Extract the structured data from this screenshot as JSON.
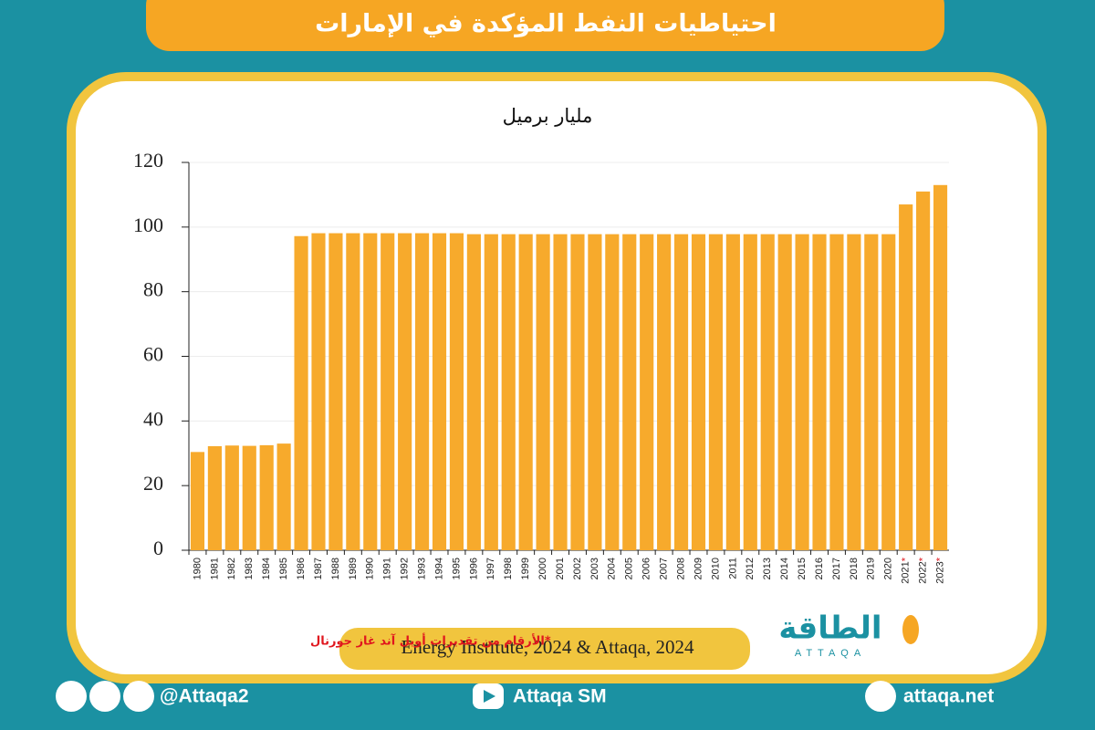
{
  "chart_data": {
    "type": "bar",
    "title": "احتياطيات النفط المؤكدة في الإمارات",
    "subtitle": "مليار برميل",
    "categories": [
      "1980",
      "1981",
      "1982",
      "1983",
      "1984",
      "1985",
      "1986",
      "1987",
      "1988",
      "1989",
      "1990",
      "1991",
      "1992",
      "1993",
      "1994",
      "1995",
      "1996",
      "1997",
      "1998",
      "1999",
      "2000",
      "2001",
      "2002",
      "2003",
      "2004",
      "2005",
      "2006",
      "2007",
      "2008",
      "2009",
      "2010",
      "2011",
      "2012",
      "2013",
      "2014",
      "2015",
      "2016",
      "2017",
      "2018",
      "2019",
      "2020",
      "2021*",
      "2022*",
      "2023*"
    ],
    "values": [
      30.4,
      32.2,
      32.4,
      32.3,
      32.5,
      33,
      97.2,
      98.1,
      98.1,
      98.1,
      98.1,
      98.1,
      98.1,
      98.1,
      98.1,
      98.1,
      97.8,
      97.8,
      97.8,
      97.8,
      97.8,
      97.8,
      97.8,
      97.8,
      97.8,
      97.8,
      97.8,
      97.8,
      97.8,
      97.8,
      97.8,
      97.8,
      97.8,
      97.8,
      97.8,
      97.8,
      97.8,
      97.8,
      97.8,
      97.8,
      97.8,
      107,
      111,
      113
    ],
    "color": "#f7aa2c",
    "ylim": [
      0,
      120
    ],
    "yticks": [
      0,
      20,
      40,
      60,
      80,
      100,
      120
    ],
    "grid": true,
    "note": "*الأرقام من تقديرات أويل آند غاز جورنال",
    "source": "Energy Institute, 2024 & Attaqa, 2024"
  },
  "logo": {
    "name": "الطاقة",
    "latin": "ATTAQA"
  },
  "footer": {
    "social": "@Attaqa2",
    "youtube": "Attaqa SM",
    "website": "attaqa.net"
  }
}
